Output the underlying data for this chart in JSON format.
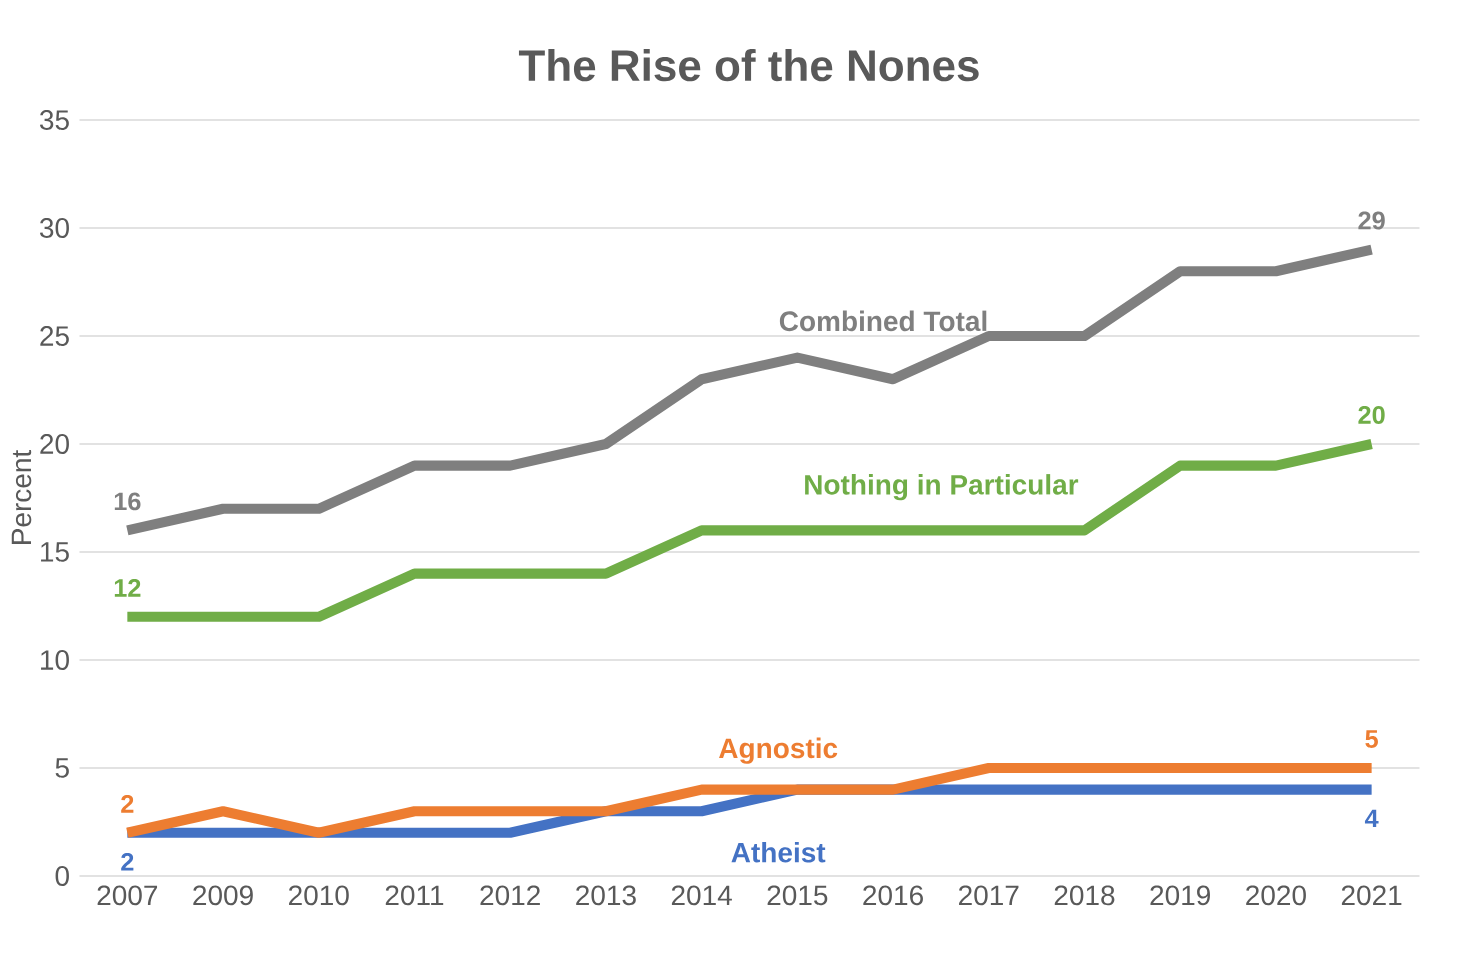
{
  "chart_data": {
    "type": "line",
    "title": "The Rise of the Nones",
    "ylabel": "Percent",
    "categories": [
      "2007",
      "2009",
      "2010",
      "2011",
      "2012",
      "2013",
      "2014",
      "2015",
      "2016",
      "2017",
      "2018",
      "2019",
      "2020",
      "2021"
    ],
    "ylim": [
      0,
      35
    ],
    "yticks": [
      0,
      5,
      10,
      15,
      20,
      25,
      30,
      35
    ],
    "grid": "y",
    "series": [
      {
        "name": "Atheist",
        "color": "#4472c4",
        "values": [
          2,
          2,
          2,
          2,
          2,
          3,
          3,
          4,
          4,
          4,
          4,
          4,
          4,
          4
        ],
        "value_labels": [
          "2",
          null,
          null,
          null,
          null,
          null,
          null,
          null,
          null,
          null,
          null,
          null,
          null,
          "4"
        ]
      },
      {
        "name": "Agnostic",
        "color": "#ed7d31",
        "values": [
          2,
          3,
          2,
          3,
          3,
          3,
          4,
          4,
          4,
          5,
          5,
          5,
          5,
          5
        ],
        "value_labels": [
          "2",
          null,
          null,
          null,
          null,
          null,
          null,
          null,
          null,
          null,
          null,
          null,
          null,
          "5"
        ]
      },
      {
        "name": "Nothing in Particular",
        "color": "#70ad47",
        "values": [
          12,
          12,
          12,
          14,
          14,
          14,
          16,
          16,
          16,
          16,
          16,
          19,
          19,
          20
        ],
        "value_labels": [
          "12",
          null,
          null,
          null,
          null,
          null,
          null,
          null,
          null,
          null,
          null,
          null,
          null,
          "20"
        ]
      },
      {
        "name": "Combined Total",
        "color": "#7f7f7f",
        "values": [
          16,
          17,
          17,
          19,
          19,
          20,
          23,
          24,
          23,
          25,
          25,
          28,
          28,
          29
        ],
        "value_labels": [
          "16",
          null,
          null,
          null,
          null,
          null,
          null,
          null,
          null,
          null,
          null,
          null,
          null,
          "29"
        ]
      }
    ]
  }
}
